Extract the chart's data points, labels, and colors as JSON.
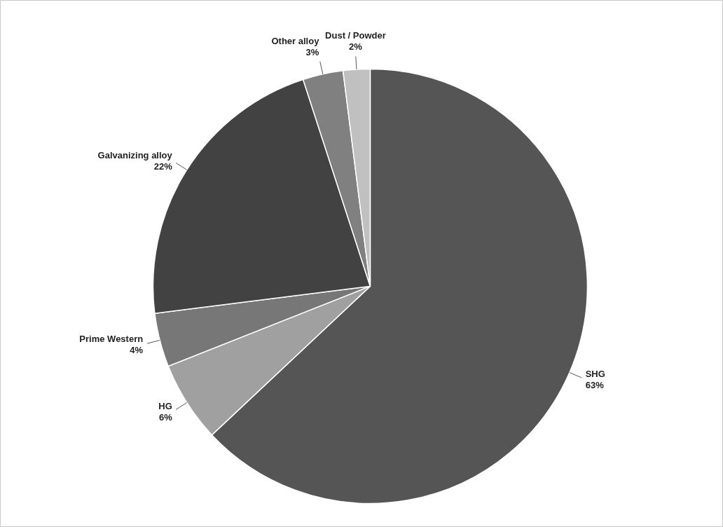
{
  "chart_data": {
    "type": "pie",
    "categories": [
      "SHG",
      "HG",
      "Prime Western",
      "Galvanizing alloy",
      "Other alloy",
      "Dust / Powder"
    ],
    "values": [
      63,
      6,
      4,
      22,
      3,
      2
    ],
    "value_labels": [
      "63%",
      "6%",
      "4%",
      "22%",
      "3%",
      "2%"
    ],
    "colors": [
      "#555555",
      "#a0a0a0",
      "#777777",
      "#424242",
      "#808080",
      "#c0c0c0"
    ]
  }
}
